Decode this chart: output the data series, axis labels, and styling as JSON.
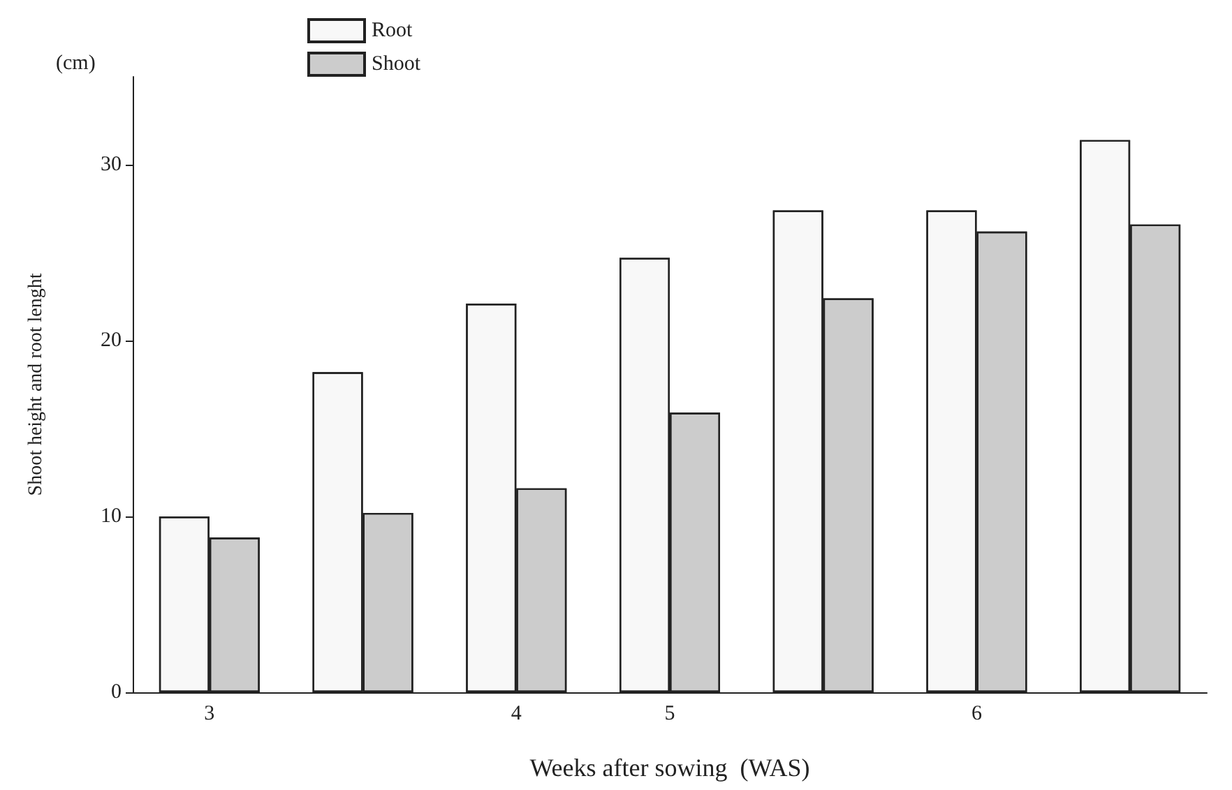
{
  "chart_data": {
    "type": "bar",
    "xlabel": "Weeks after sowing  (WAS)",
    "ylabel": "Shoot height and root lenght",
    "annotations": [
      "(cm)"
    ],
    "categories": [
      "3",
      null,
      "4",
      "5",
      null,
      "6",
      null
    ],
    "series": [
      {
        "name": "Root",
        "color": "#f8f8f8",
        "values": [
          10,
          18.2,
          22.1,
          24.7,
          27.4,
          27.4,
          31.4
        ]
      },
      {
        "name": "Shoot",
        "color": "#cccccc",
        "values": [
          8.8,
          10.2,
          11.6,
          15.9,
          22.4,
          26.2,
          26.6
        ]
      }
    ],
    "ylim": [
      0,
      35
    ],
    "yticks": [
      0,
      10,
      20,
      30
    ],
    "grid": false,
    "legend": "top"
  }
}
